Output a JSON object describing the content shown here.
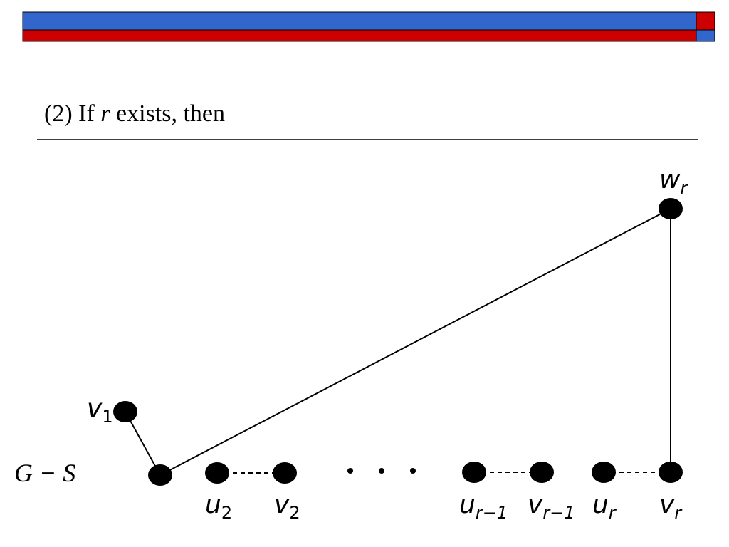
{
  "title": {
    "parts": [
      "(2) If ",
      "r",
      " exists, then"
    ]
  },
  "graph_label": "G − S",
  "nodes": [
    {
      "label": "v",
      "sub": "1"
    },
    {
      "label": "u",
      "sub": "2"
    },
    {
      "label": "v",
      "sub": "2"
    },
    {
      "label": "u",
      "sub": "r−1"
    },
    {
      "label": "v",
      "sub": "r−1"
    },
    {
      "label": "u",
      "sub": "r"
    },
    {
      "label": "v",
      "sub": "r"
    },
    {
      "label": "w",
      "sub": "r"
    }
  ]
}
